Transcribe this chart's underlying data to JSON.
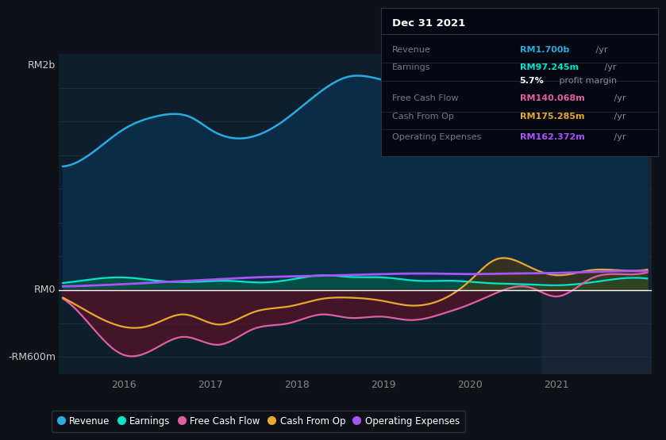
{
  "background_color": "#0e1117",
  "plot_bg_color": "#0d1e2d",
  "highlight_bg_color": "#162435",
  "ylabel_top": "RM2b",
  "ylabel_zero": "RM0",
  "ylabel_bottom": "-RM600m",
  "xmin": 2015.25,
  "xmax": 2022.1,
  "ymin": -750,
  "ymax": 2100,
  "xticks": [
    2016,
    2017,
    2018,
    2019,
    2020,
    2021
  ],
  "highlight_x_start": 2020.83,
  "highlight_x_end": 2022.1,
  "revenue_color": "#29aae1",
  "revenue_fill": "#0a2d45",
  "earnings_color": "#00e5cc",
  "earnings_fill_pos": "#005544",
  "earnings_neg_fill": "#5a1228",
  "fcf_color": "#e05fa0",
  "cashop_color": "#e8a832",
  "opex_color": "#a855f7",
  "zero_line_color": "#ffffff",
  "grid_color": "#1e3045",
  "title_box": {
    "title": "Dec 31 2021",
    "rows": [
      {
        "label": "Revenue",
        "value": "RM1.700b",
        "unit": " /yr",
        "value_color": "#29aae1"
      },
      {
        "label": "Earnings",
        "value": "RM97.245m",
        "unit": " /yr",
        "value_color": "#00e5cc"
      },
      {
        "label": "",
        "value": "5.7%",
        "unit": " profit margin",
        "value_color": "#ffffff"
      },
      {
        "label": "Free Cash Flow",
        "value": "RM140.068m",
        "unit": " /yr",
        "value_color": "#e05fa0"
      },
      {
        "label": "Cash From Op",
        "value": "RM175.285m",
        "unit": " /yr",
        "value_color": "#e8a832"
      },
      {
        "label": "Operating Expenses",
        "value": "RM162.372m",
        "unit": " /yr",
        "value_color": "#a855f7"
      }
    ]
  },
  "legend_items": [
    {
      "label": "Revenue",
      "color": "#29aae1"
    },
    {
      "label": "Earnings",
      "color": "#00e5cc"
    },
    {
      "label": "Free Cash Flow",
      "color": "#e05fa0"
    },
    {
      "label": "Cash From Op",
      "color": "#e8a832"
    },
    {
      "label": "Operating Expenses",
      "color": "#a855f7"
    }
  ]
}
